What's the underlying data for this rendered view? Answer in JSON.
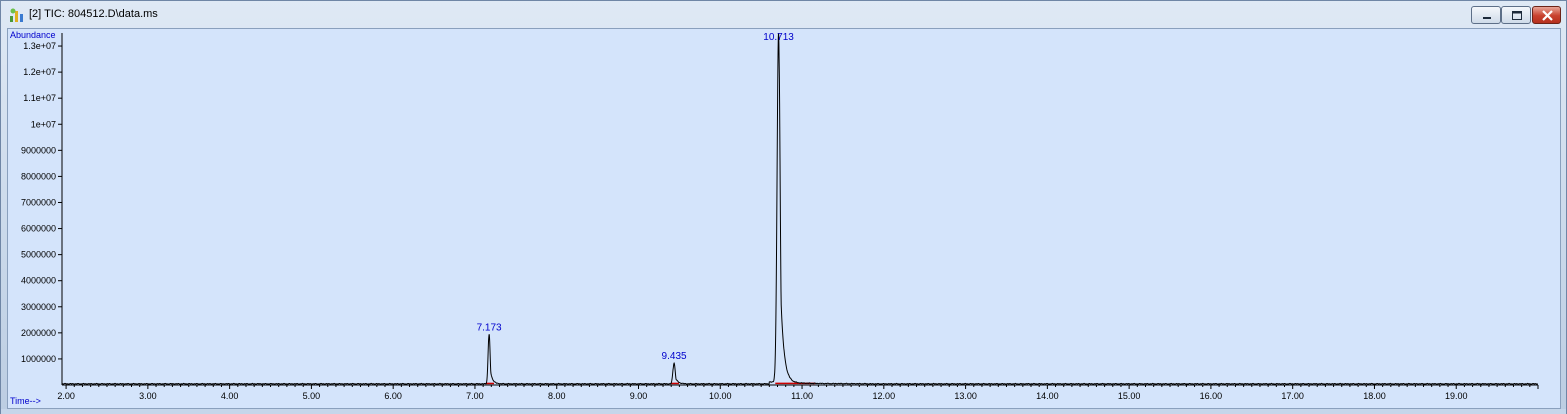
{
  "window": {
    "title": "[2] TIC: 804512.D\\data.ms",
    "icon": "chromatogram-app-icon",
    "controls": [
      "minimize-icon",
      "maximize-icon",
      "close-icon"
    ]
  },
  "chart_data": {
    "type": "line",
    "ylabel": "Abundance",
    "xlabel": "Time-->",
    "xlim": [
      1.95,
      20.0
    ],
    "ylim": [
      0,
      13500000
    ],
    "x_ticks": [
      2,
      3,
      4,
      5,
      6,
      7,
      8,
      9,
      10,
      11,
      12,
      13,
      14,
      15,
      16,
      17,
      18,
      19
    ],
    "x_tick_labels": [
      "2.00",
      "3.00",
      "4.00",
      "5.00",
      "6.00",
      "7.00",
      "8.00",
      "9.00",
      "10.00",
      "11.00",
      "12.00",
      "13.00",
      "14.00",
      "15.00",
      "16.00",
      "17.00",
      "18.00",
      "19.00"
    ],
    "y_ticks": [
      1000000,
      2000000,
      3000000,
      4000000,
      5000000,
      6000000,
      7000000,
      8000000,
      9000000,
      10000000,
      11000000,
      12000000,
      13000000
    ],
    "y_tick_labels": [
      "1000000",
      "2000000",
      "3000000",
      "4000000",
      "5000000",
      "6000000",
      "7000000",
      "8000000",
      "9000000",
      "1e+07",
      "1.1e+07",
      "1.2e+07",
      "1.3e+07"
    ],
    "grid": false,
    "series": [
      {
        "peaks": [
          {
            "rt": 7.173,
            "height": 1900000,
            "label": "7.173"
          },
          {
            "rt": 9.435,
            "height": 800000,
            "label": "9.435"
          },
          {
            "rt": 10.713,
            "height": 13400000,
            "label": "10.713"
          }
        ],
        "baseline": 60000
      }
    ],
    "colors": {
      "trace": "#000000",
      "labels": "#0000cc",
      "integration": "#cc0000",
      "background": "#d4e4fb"
    }
  }
}
